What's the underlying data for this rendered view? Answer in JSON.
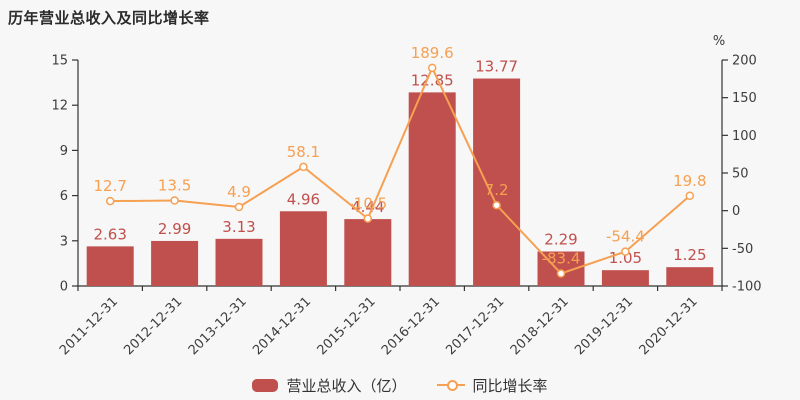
{
  "title": "历年营业总收入及同比增长率",
  "colors": {
    "background": "#f7f7f7",
    "bar": "#c0504d",
    "bar_label": "#c0504d",
    "line": "#f6a052",
    "line_label": "#f6a052",
    "marker_fill": "#ffffff",
    "axis": "#333333",
    "tick_label": "#3d3d3d",
    "title": "#2b2b2b",
    "legend_text": "#333333"
  },
  "chart_data": {
    "type": "bar+line",
    "categories": [
      "2011-12-31",
      "2012-12-31",
      "2013-12-31",
      "2014-12-31",
      "2015-12-31",
      "2016-12-31",
      "2017-12-31",
      "2018-12-31",
      "2019-12-31",
      "2020-12-31"
    ],
    "series": [
      {
        "name": "营业总收入（亿）",
        "type": "bar",
        "axis": "left",
        "color": "#c0504d",
        "values": [
          2.63,
          2.99,
          3.13,
          4.96,
          4.44,
          12.85,
          13.77,
          2.29,
          1.05,
          1.25
        ]
      },
      {
        "name": "同比增长率",
        "type": "line",
        "axis": "right",
        "color": "#f6a052",
        "marker": "open-circle",
        "values": [
          12.7,
          13.5,
          4.9,
          58.1,
          -10.5,
          189.6,
          7.2,
          -83.4,
          -54.4,
          19.8
        ]
      }
    ],
    "left_axis": {
      "min": 0,
      "max": 15,
      "ticks": [
        0,
        3,
        6,
        9,
        12,
        15
      ],
      "unit": ""
    },
    "right_axis": {
      "min": -100,
      "max": 200,
      "ticks": [
        -100,
        -50,
        0,
        50,
        100,
        150,
        200
      ],
      "unit": "%"
    },
    "title": "历年营业总收入及同比增长率",
    "xlabel": "",
    "ylabel": "",
    "grid": false,
    "legend_position": "bottom",
    "x_label_rotation_deg": 45
  }
}
